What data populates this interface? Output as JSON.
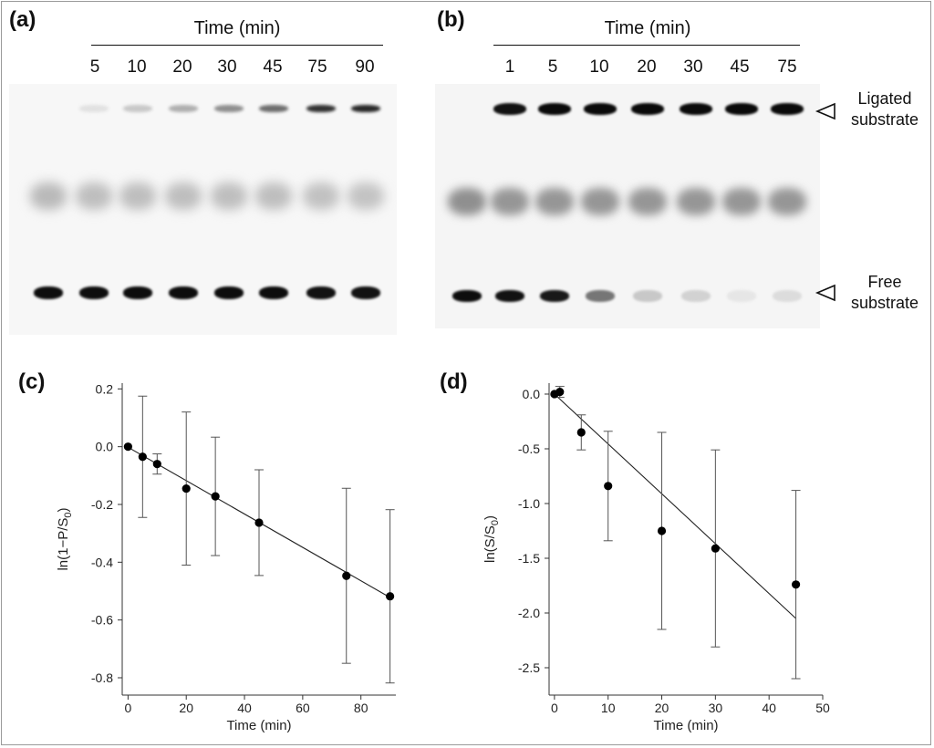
{
  "panels": {
    "a": {
      "letter": "(a)",
      "time_title": "Time (min)",
      "lanes": [
        "5",
        "10",
        "20",
        "30",
        "45",
        "75",
        "90"
      ]
    },
    "b": {
      "letter": "(b)",
      "time_title": "Time (min)",
      "lanes": [
        "1",
        "5",
        "10",
        "20",
        "30",
        "45",
        "75"
      ],
      "markers": {
        "ligated_line1": "Ligated",
        "ligated_line2": "substrate",
        "free_line1": "Free",
        "free_line2": "substrate"
      }
    },
    "c": {
      "letter": "(c)"
    },
    "d": {
      "letter": "(d)"
    }
  },
  "gels": {
    "a": {
      "ligated_intensity": [
        0.0,
        0.12,
        0.22,
        0.32,
        0.45,
        0.58,
        0.82,
        0.86
      ],
      "middle_intensity": [
        0.28,
        0.26,
        0.26,
        0.26,
        0.26,
        0.26,
        0.25,
        0.24
      ],
      "free_intensity": [
        0.97,
        0.97,
        0.97,
        0.97,
        0.97,
        0.97,
        0.95,
        0.95
      ]
    },
    "b": {
      "ligated_intensity": [
        0.0,
        0.95,
        0.98,
        0.98,
        0.98,
        0.98,
        0.98,
        0.98
      ],
      "middle_intensity": [
        0.45,
        0.42,
        0.42,
        0.42,
        0.42,
        0.42,
        0.42,
        0.42
      ],
      "free_intensity": [
        0.97,
        0.95,
        0.92,
        0.55,
        0.22,
        0.18,
        0.1,
        0.14
      ]
    }
  },
  "chart_data": [
    {
      "id": "c",
      "type": "scatter",
      "title": "",
      "xlabel": "Time (min)",
      "ylabel": "ln(1−P/S0)",
      "xlim": [
        -2,
        92
      ],
      "ylim": [
        -0.86,
        0.22
      ],
      "xticks": [
        0,
        20,
        40,
        60,
        80
      ],
      "yticks": [
        0.2,
        0.0,
        -0.2,
        -0.4,
        -0.6,
        -0.8
      ],
      "ytick_labels": [
        "0.2",
        "0.0",
        "-0.2",
        "-0.4",
        "-0.6",
        "-0.8"
      ],
      "grid": false,
      "points": [
        {
          "x": 0,
          "y": 0.0,
          "err": 0.0
        },
        {
          "x": 5,
          "y": -0.035,
          "err": 0.21
        },
        {
          "x": 10,
          "y": -0.06,
          "err": 0.035
        },
        {
          "x": 20,
          "y": -0.145,
          "err": 0.265
        },
        {
          "x": 30,
          "y": -0.172,
          "err": 0.205
        },
        {
          "x": 45,
          "y": -0.263,
          "err": 0.183
        },
        {
          "x": 75,
          "y": -0.447,
          "err": 0.303
        },
        {
          "x": 90,
          "y": -0.518,
          "err": 0.3
        }
      ],
      "fit": {
        "x0": 0,
        "y0": -0.002,
        "x1": 90,
        "y1": -0.522
      }
    },
    {
      "id": "d",
      "type": "scatter",
      "title": "",
      "xlabel": "Time (min)",
      "ylabel": "ln(S/S0)",
      "xlim": [
        -1,
        50
      ],
      "ylim": [
        -2.75,
        0.1
      ],
      "xticks": [
        0,
        10,
        20,
        30,
        40,
        50
      ],
      "yticks": [
        0.0,
        -0.5,
        -1.0,
        -1.5,
        -2.0,
        -2.5
      ],
      "ytick_labels": [
        "0.0",
        "-0.5",
        "-1.0",
        "-1.5",
        "-2.0",
        "-2.5"
      ],
      "grid": false,
      "points": [
        {
          "x": 0,
          "y": 0.0,
          "err": 0.0
        },
        {
          "x": 1,
          "y": 0.02,
          "err": 0.05
        },
        {
          "x": 5,
          "y": -0.35,
          "err": 0.16
        },
        {
          "x": 10,
          "y": -0.84,
          "err": 0.5
        },
        {
          "x": 20,
          "y": -1.25,
          "err": 0.9
        },
        {
          "x": 30,
          "y": -1.41,
          "err": 0.9
        },
        {
          "x": 45,
          "y": -1.74,
          "err": 0.86
        }
      ],
      "fit": {
        "x0": 0,
        "y0": 0.0,
        "x1": 45,
        "y1": -2.05
      }
    }
  ]
}
